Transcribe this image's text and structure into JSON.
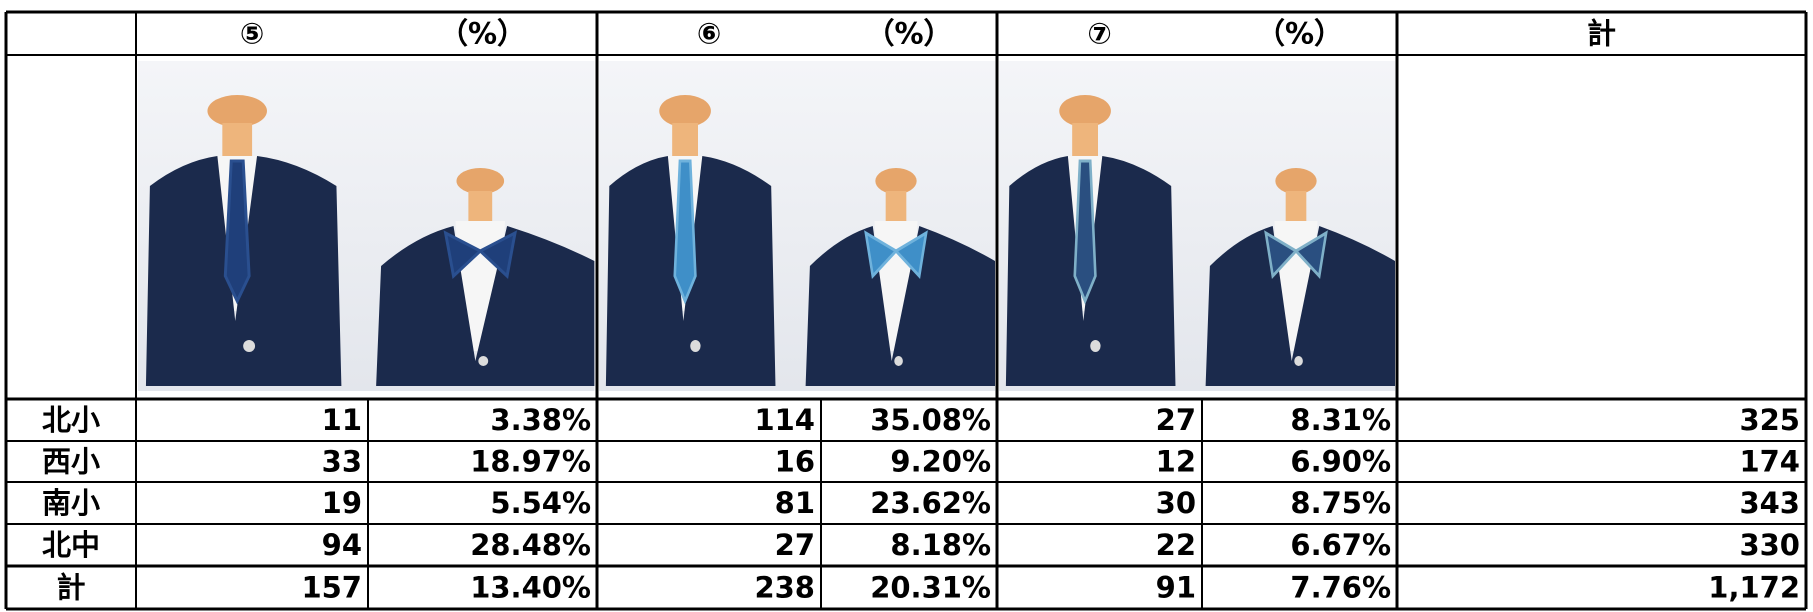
{
  "header": {
    "cells": [
      "⑤",
      "（%）",
      "⑥",
      "（%）",
      "⑦",
      "（%）",
      "計"
    ]
  },
  "rows": [
    {
      "label": "北小",
      "cells": [
        "11",
        "3.38%",
        "114",
        "35.08%",
        "27",
        "8.31%",
        "325"
      ]
    },
    {
      "label": "西小",
      "cells": [
        "33",
        "18.97%",
        "16",
        "9.20%",
        "12",
        "6.90%",
        "174"
      ]
    },
    {
      "label": "南小",
      "cells": [
        "19",
        "5.54%",
        "81",
        "23.62%",
        "30",
        "8.75%",
        "343"
      ]
    },
    {
      "label": "北中",
      "cells": [
        "94",
        "28.48%",
        "27",
        "8.18%",
        "22",
        "6.67%",
        "330"
      ]
    },
    {
      "label": "計",
      "cells": [
        "157",
        "13.40%",
        "238",
        "20.31%",
        "91",
        "7.76%",
        "1,172"
      ]
    }
  ]
}
